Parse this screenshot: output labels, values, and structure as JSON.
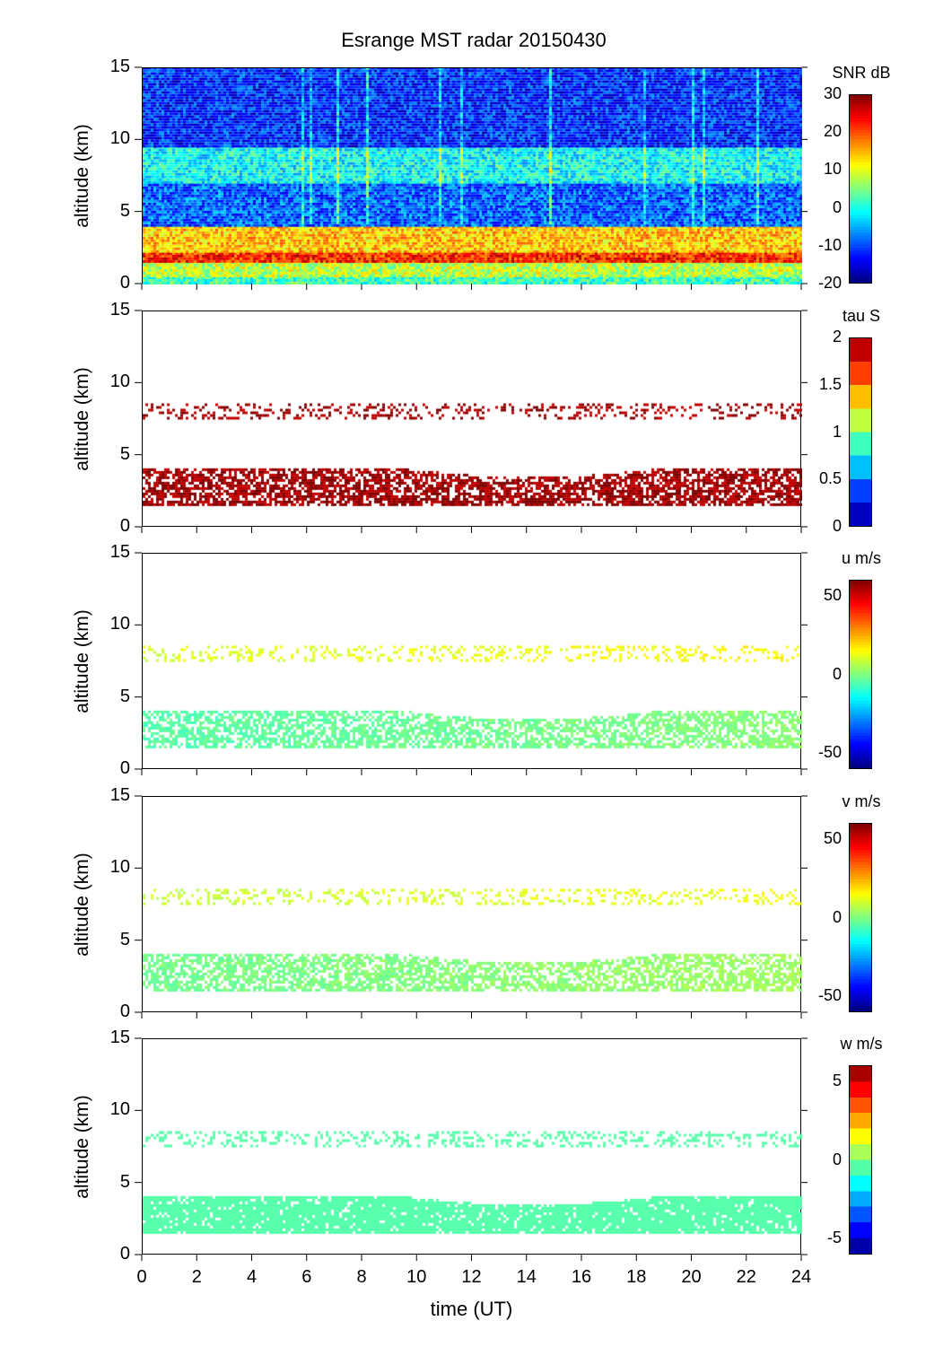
{
  "chart_data": {
    "type": "heatmap",
    "title": "Esrange MST radar 20150430",
    "xlabel": "time (UT)",
    "xlim": [
      0,
      24
    ],
    "xticks": [
      "0",
      "2",
      "4",
      "6",
      "8",
      "10",
      "12",
      "14",
      "16",
      "18",
      "20",
      "22",
      "24"
    ],
    "panels": [
      {
        "ylabel": "altitude (km)",
        "ylim": [
          0,
          15
        ],
        "yticks": [
          "0",
          "5",
          "10",
          "15"
        ],
        "colorbar_label": "SNR dB",
        "clim": [
          -20,
          30
        ],
        "cticks": [
          "30",
          "20",
          "10",
          "0",
          "-10",
          "-20"
        ],
        "cticks_values": [
          30,
          20,
          10,
          0,
          -10,
          -20
        ],
        "levels": 0,
        "layers": [
          {
            "alt": [
              0,
              0.5
            ],
            "value": 2,
            "fill": 1
          },
          {
            "alt": [
              0.5,
              1.5
            ],
            "value": 8,
            "fill": 1
          },
          {
            "alt": [
              1.5,
              2.2
            ],
            "value": 22,
            "fill": 1
          },
          {
            "alt": [
              2.2,
              4
            ],
            "value": 14,
            "fill": 1
          },
          {
            "alt": [
              4,
              7
            ],
            "value": -9,
            "fill": 1
          },
          {
            "alt": [
              7,
              9.5
            ],
            "value": -1,
            "fill": 1
          },
          {
            "alt": [
              9.5,
              15
            ],
            "value": -12,
            "fill": 1
          }
        ]
      },
      {
        "ylabel": "altitude (km)",
        "ylim": [
          0,
          15
        ],
        "yticks": [
          "0",
          "5",
          "10",
          "15"
        ],
        "colorbar_label": "tau S",
        "clim": [
          0,
          2
        ],
        "cticks": [
          "2",
          "1.5",
          "1",
          "0.5",
          "0"
        ],
        "cticks_values": [
          2,
          1.5,
          1,
          0.5,
          0
        ],
        "levels": 8,
        "layers": [
          {
            "alt": [
              1.5,
              4
            ],
            "value": 2,
            "fill": 0.7
          },
          {
            "alt": [
              7.5,
              8.6
            ],
            "value": 2,
            "fill": 0.25
          }
        ]
      },
      {
        "ylabel": "altitude (km)",
        "ylim": [
          0,
          15
        ],
        "yticks": [
          "0",
          "5",
          "10",
          "15"
        ],
        "colorbar_label": "u m/s",
        "clim": [
          -60,
          60
        ],
        "cticks": [
          "50",
          "0",
          "-50"
        ],
        "cticks_values": [
          50,
          0,
          -50
        ],
        "levels": 0,
        "layers": [
          {
            "alt": [
              1.5,
              4
            ],
            "value": -5,
            "fill": 0.65
          },
          {
            "alt": [
              7.5,
              8.6
            ],
            "value": 10,
            "fill": 0.25
          }
        ]
      },
      {
        "ylabel": "altitude (km)",
        "ylim": [
          0,
          15
        ],
        "yticks": [
          "0",
          "5",
          "10",
          "15"
        ],
        "colorbar_label": "v m/s",
        "clim": [
          -60,
          60
        ],
        "cticks": [
          "50",
          "0",
          "-50"
        ],
        "cticks_values": [
          50,
          0,
          -50
        ],
        "levels": 0,
        "layers": [
          {
            "alt": [
              1.5,
              4
            ],
            "value": -2,
            "fill": 0.65
          },
          {
            "alt": [
              7.5,
              8.6
            ],
            "value": 8,
            "fill": 0.25
          }
        ]
      },
      {
        "ylabel": "altitude (km)",
        "ylim": [
          0,
          15
        ],
        "yticks": [
          "0",
          "5",
          "10",
          "15"
        ],
        "colorbar_label": "w m/s",
        "clim": [
          -6,
          6
        ],
        "cticks": [
          "5",
          "0",
          "-5"
        ],
        "cticks_values": [
          5,
          0,
          -5
        ],
        "levels": 12,
        "layers": [
          {
            "alt": [
              1.5,
              4
            ],
            "value": -0.5,
            "fill": 0.9
          },
          {
            "alt": [
              7.5,
              8.6
            ],
            "value": -0.5,
            "fill": 0.3
          }
        ]
      }
    ]
  }
}
